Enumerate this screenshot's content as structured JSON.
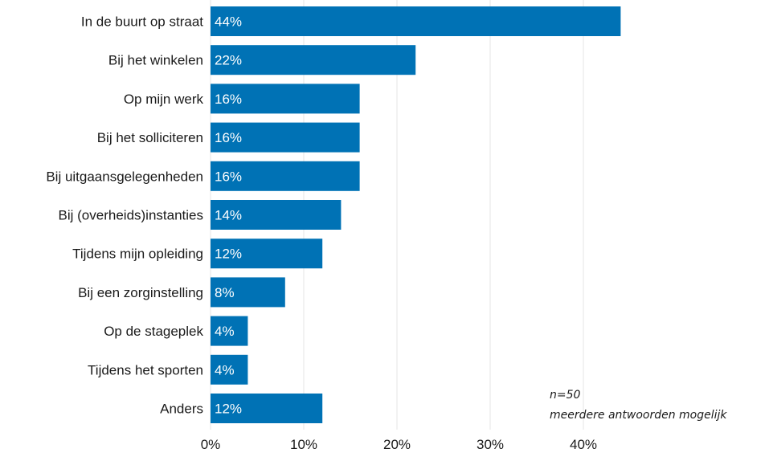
{
  "chart_data": {
    "type": "bar",
    "orientation": "horizontal",
    "categories": [
      "In de buurt op straat",
      "Bij het winkelen",
      "Op mijn werk",
      "Bij het solliciteren",
      "Bij uitgaansgelegenheden",
      "Bij (overheids)instanties",
      "Tijdens mijn opleiding",
      "Bij een zorginstelling",
      "Op de stageplek",
      "Tijdens het sporten",
      "Anders"
    ],
    "values": [
      44,
      22,
      16,
      16,
      16,
      14,
      12,
      8,
      4,
      4,
      12
    ],
    "value_labels": [
      "44%",
      "22%",
      "16%",
      "16%",
      "16%",
      "14%",
      "12%",
      "8%",
      "4%",
      "4%",
      "12%"
    ],
    "xlim": [
      0,
      45
    ],
    "x_ticks": [
      0,
      10,
      20,
      30,
      40
    ],
    "x_tick_labels": [
      "0%",
      "10%",
      "20%",
      "30%",
      "40%"
    ],
    "grid": true,
    "bar_color": "#0072b5",
    "grid_color": "#e6e6e6",
    "annotations": [
      "n=50",
      "meerdere antwoorden mogelijk"
    ]
  }
}
